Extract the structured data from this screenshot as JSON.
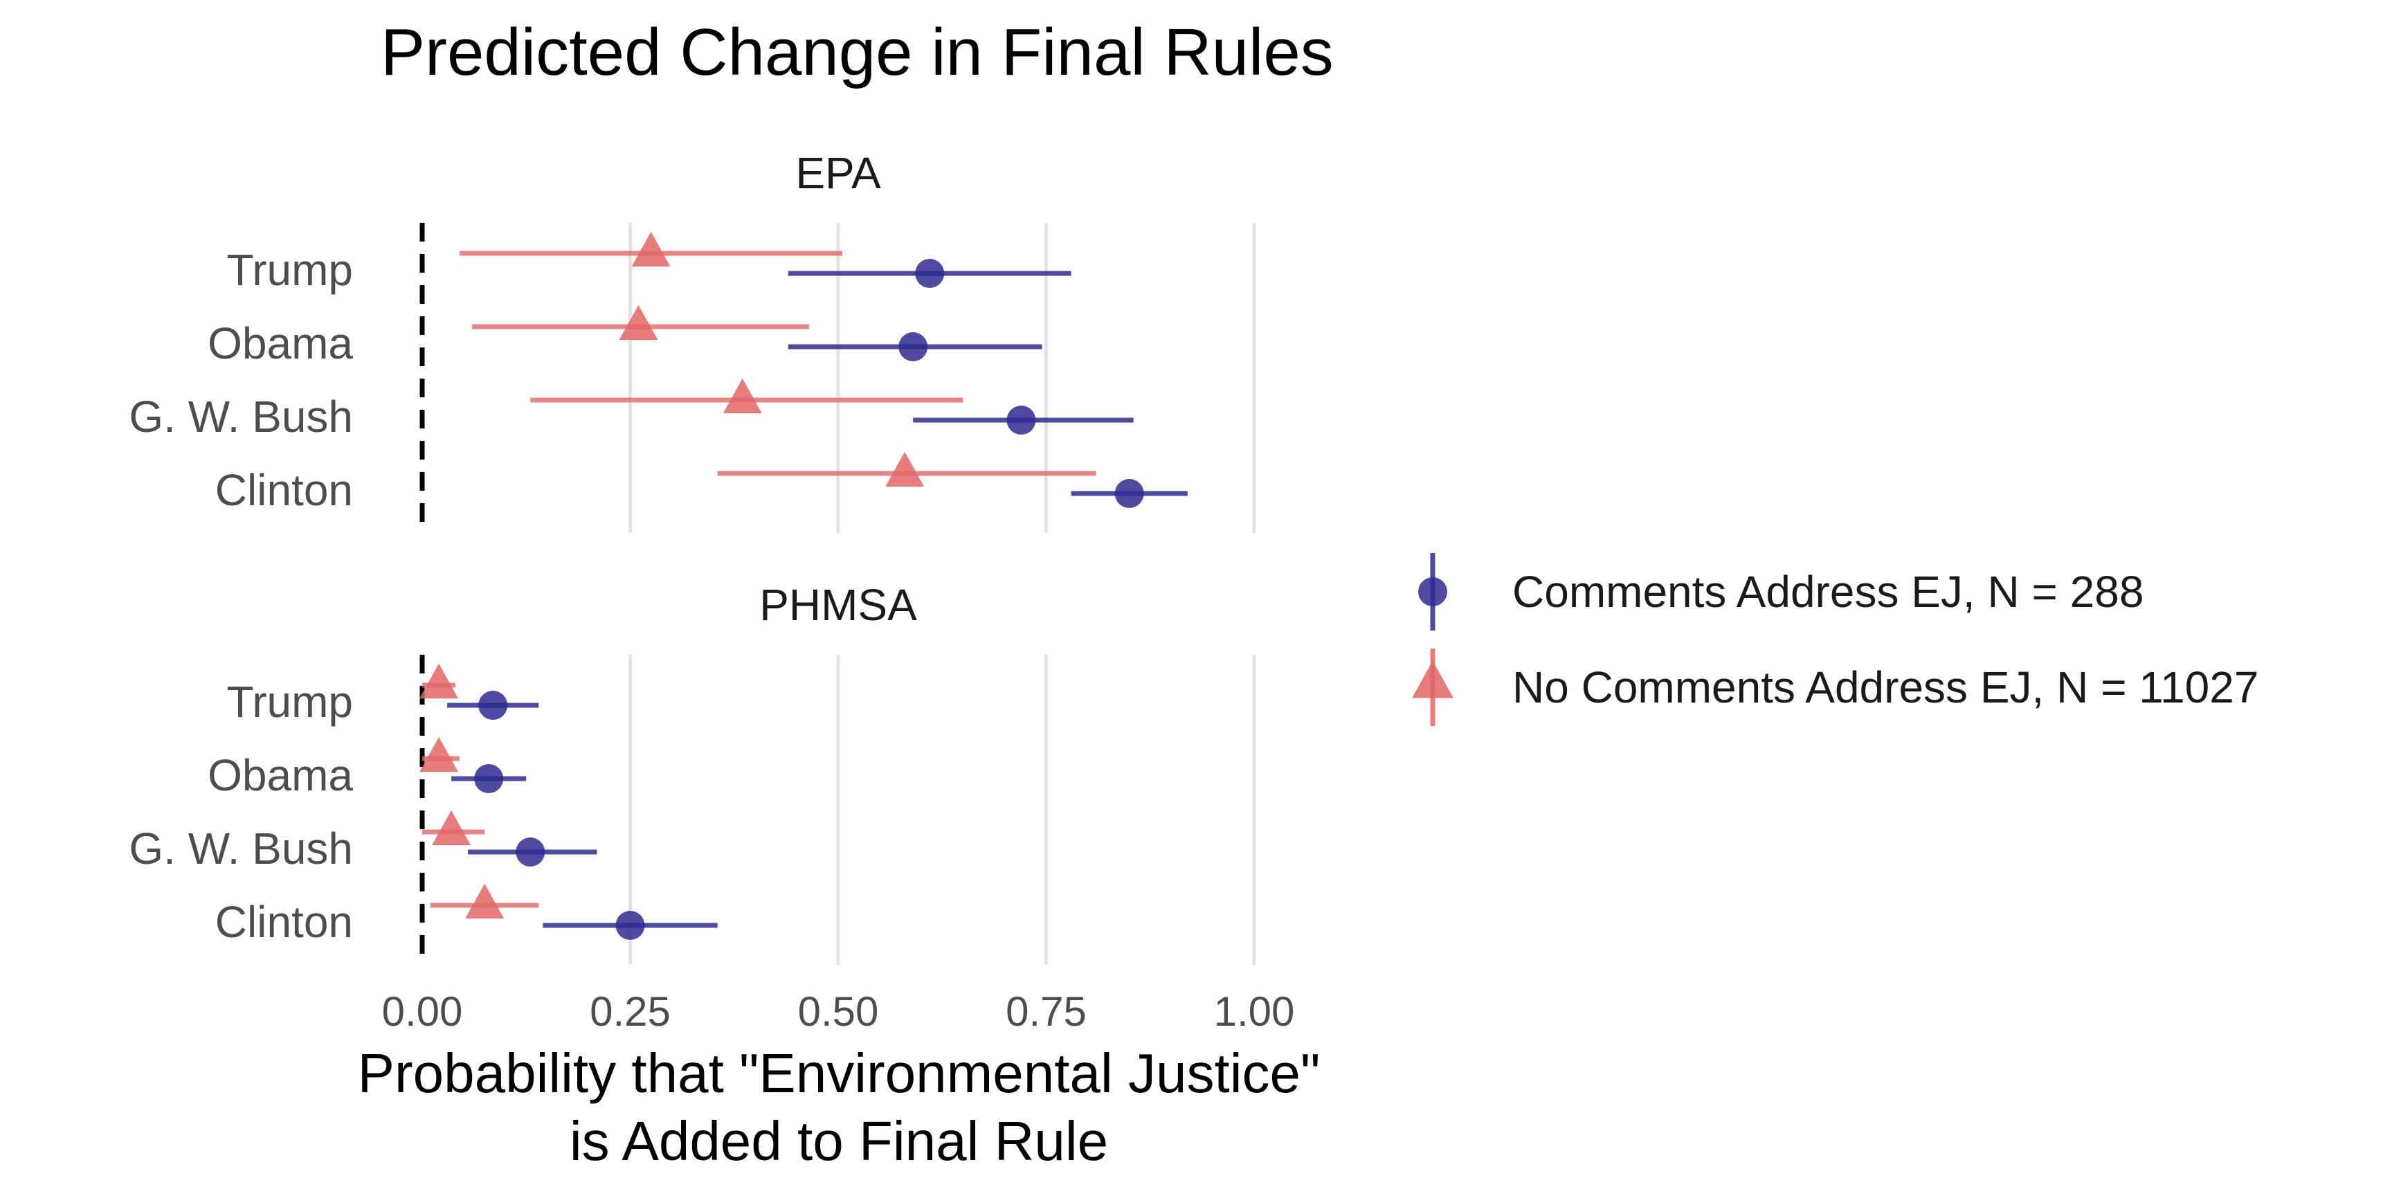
{
  "chart_data": {
    "type": "scatter",
    "title": "Predicted Change in Final Rules",
    "xlabel_lines": [
      "Probability that \"Environmental Justice\"",
      "is Added to Final Rule"
    ],
    "ylabel": "",
    "xlim": [
      0,
      1
    ],
    "x_ticks": [
      0,
      0.25,
      0.5,
      0.75,
      1
    ],
    "x_tick_labels": [
      "0.00",
      "0.25",
      "0.50",
      "0.75",
      "1.00"
    ],
    "reference_line": 0,
    "grid": true,
    "legend_position": "right",
    "categories": [
      "Trump",
      "Obama",
      "G. W. Bush",
      "Clinton"
    ],
    "series": [
      {
        "name": "Comments Address EJ, N = 288",
        "marker": "circle",
        "color": "#2e2a8f"
      },
      {
        "name": "No Comments Address EJ, N = 11027",
        "marker": "triangle",
        "color": "#e06666"
      }
    ],
    "panels": [
      {
        "title": "EPA",
        "data": {
          "Trump": [
            {
              "estimate": 0.61,
              "low": 0.44,
              "high": 0.78
            },
            {
              "estimate": 0.275,
              "low": 0.045,
              "high": 0.505
            }
          ],
          "Obama": [
            {
              "estimate": 0.59,
              "low": 0.44,
              "high": 0.745
            },
            {
              "estimate": 0.26,
              "low": 0.06,
              "high": 0.465
            }
          ],
          "G. W. Bush": [
            {
              "estimate": 0.72,
              "low": 0.59,
              "high": 0.855
            },
            {
              "estimate": 0.385,
              "low": 0.13,
              "high": 0.65
            }
          ],
          "Clinton": [
            {
              "estimate": 0.85,
              "low": 0.78,
              "high": 0.92
            },
            {
              "estimate": 0.58,
              "low": 0.355,
              "high": 0.81
            }
          ]
        }
      },
      {
        "title": "PHMSA",
        "data": {
          "Trump": [
            {
              "estimate": 0.085,
              "low": 0.03,
              "high": 0.14
            },
            {
              "estimate": 0.02,
              "low": 0.0,
              "high": 0.04
            }
          ],
          "Obama": [
            {
              "estimate": 0.08,
              "low": 0.035,
              "high": 0.125
            },
            {
              "estimate": 0.02,
              "low": 0.0,
              "high": 0.045
            }
          ],
          "G. W. Bush": [
            {
              "estimate": 0.13,
              "low": 0.055,
              "high": 0.21
            },
            {
              "estimate": 0.035,
              "low": 0.0,
              "high": 0.075
            }
          ],
          "Clinton": [
            {
              "estimate": 0.25,
              "low": 0.145,
              "high": 0.355
            },
            {
              "estimate": 0.075,
              "low": 0.01,
              "high": 0.14
            }
          ]
        }
      }
    ]
  }
}
